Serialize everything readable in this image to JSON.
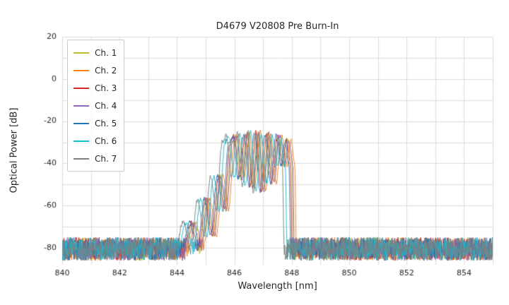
{
  "chart_data": {
    "type": "line",
    "title": "D4679 V20808 Pre Burn-In",
    "xlabel": "Wavelength [nm]",
    "ylabel": "Optical Power [dB]",
    "xlim": [
      840,
      855
    ],
    "ylim": [
      -88,
      20
    ],
    "x_ticks": [
      840,
      842,
      844,
      846,
      848,
      850,
      852,
      854
    ],
    "y_ticks": [
      20,
      0,
      -20,
      -40,
      -60,
      -80
    ],
    "grid": true,
    "grid_color": "#dcdcdc",
    "background_color": "#ffffff",
    "legend_position": "upper left",
    "noise_floor_db": -80.5,
    "noise_amplitude_db": 5.5,
    "envelope_points": [
      [
        844.15,
        -86
      ],
      [
        844.5,
        -68
      ],
      [
        844.75,
        -82
      ],
      [
        845.0,
        -57
      ],
      [
        845.22,
        -74
      ],
      [
        845.45,
        -46
      ],
      [
        845.65,
        -62
      ],
      [
        845.85,
        -30
      ],
      [
        846.0,
        -27
      ],
      [
        846.18,
        -47
      ],
      [
        846.38,
        -26
      ],
      [
        846.56,
        -51
      ],
      [
        846.75,
        -25
      ],
      [
        846.94,
        -53
      ],
      [
        847.12,
        -26
      ],
      [
        847.3,
        -49
      ],
      [
        847.5,
        -27
      ],
      [
        847.68,
        -41
      ],
      [
        847.82,
        -29
      ],
      [
        847.95,
        -40
      ],
      [
        848.02,
        -86
      ]
    ],
    "series": [
      {
        "name": "Ch. 1",
        "color": "#bcbd22",
        "shift_nm": 0.05,
        "seed": 11
      },
      {
        "name": "Ch. 2",
        "color": "#ff7f0e",
        "shift_nm": 0.15,
        "seed": 22
      },
      {
        "name": "Ch. 3",
        "color": "#d62728",
        "shift_nm": 0.0,
        "seed": 33
      },
      {
        "name": "Ch. 4",
        "color": "#9467bd",
        "shift_nm": 0.08,
        "seed": 44
      },
      {
        "name": "Ch. 5",
        "color": "#1f77b4",
        "shift_nm": -0.05,
        "seed": 55
      },
      {
        "name": "Ch. 6",
        "color": "#17becf",
        "shift_nm": -0.18,
        "seed": 66
      },
      {
        "name": "Ch. 7",
        "color": "#7f7f7f",
        "shift_nm": -0.28,
        "seed": 77
      }
    ]
  }
}
